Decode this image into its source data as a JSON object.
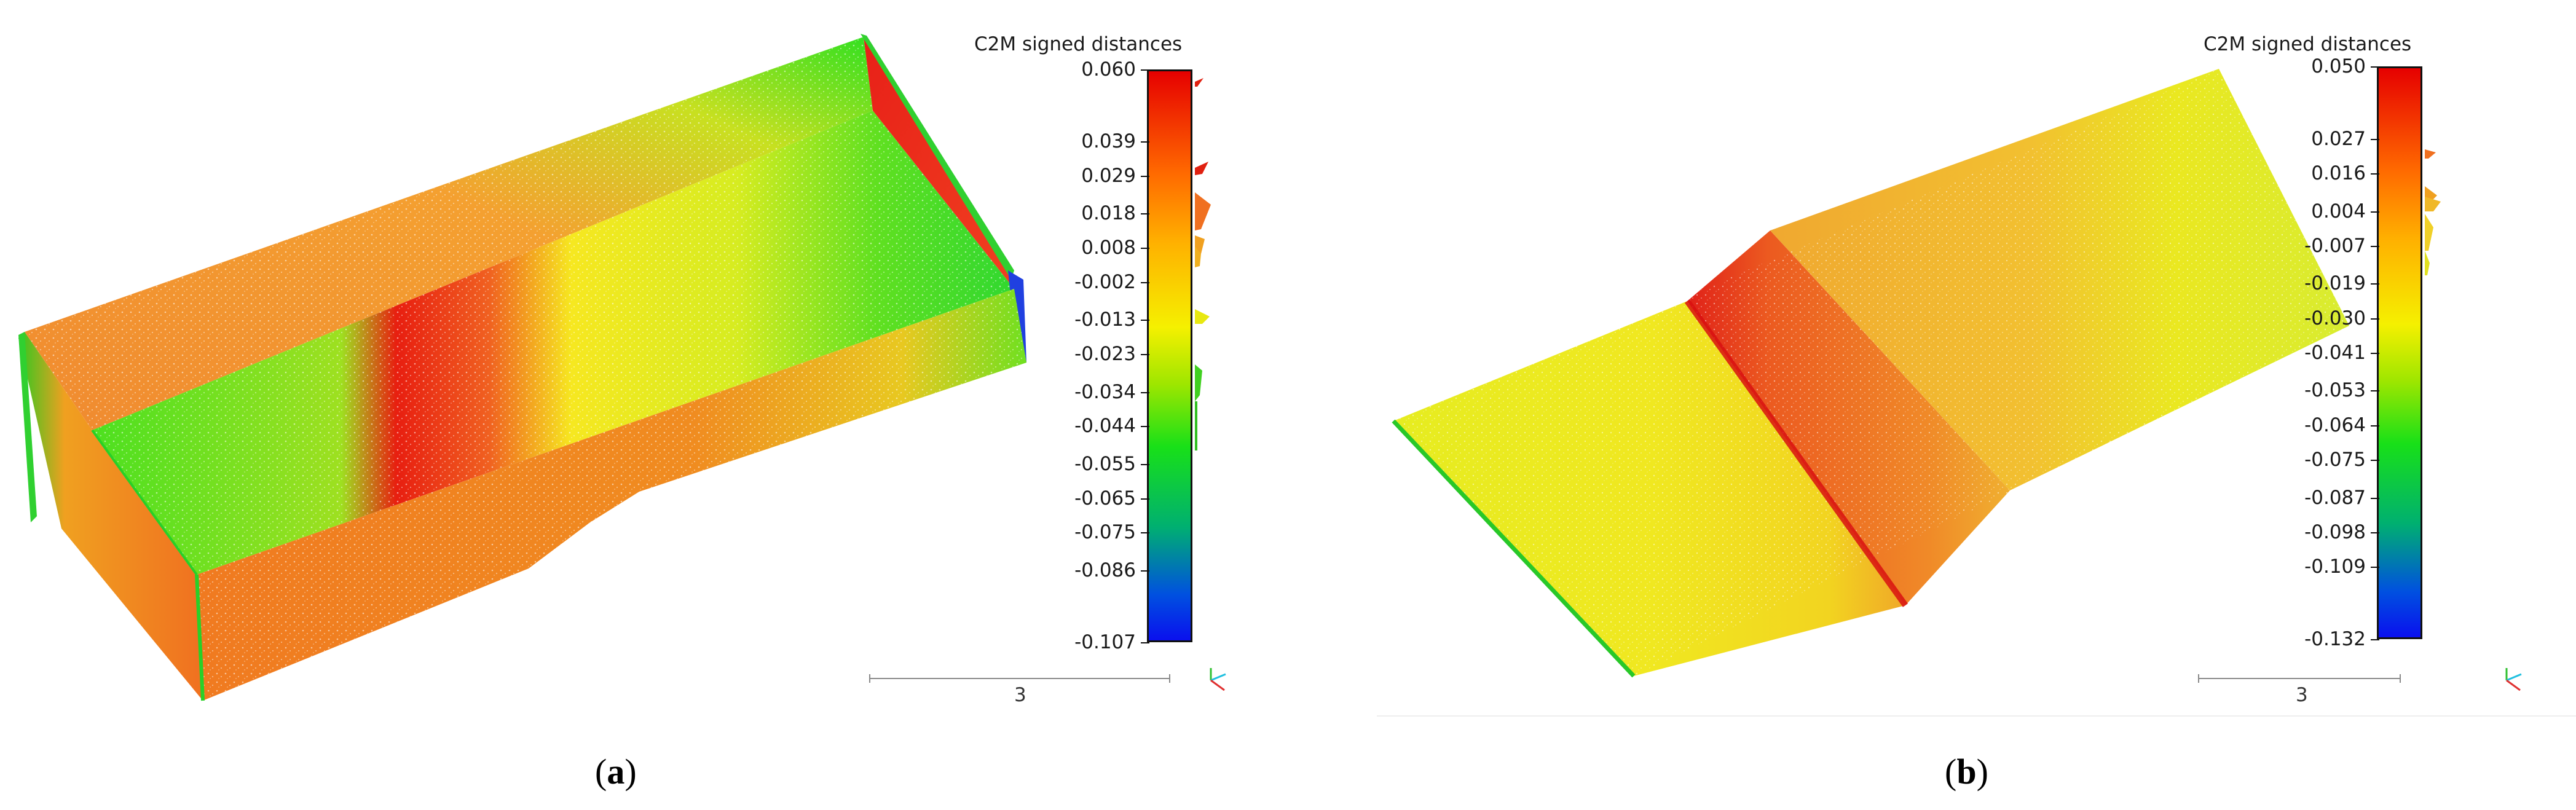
{
  "panels": [
    {
      "id": "a",
      "colorbar": {
        "title": "C2M signed distances",
        "ticks": [
          "0.060",
          "0.039",
          "0.029",
          "0.018",
          "0.008",
          "-0.002",
          "-0.013",
          "-0.023",
          "-0.034",
          "-0.044",
          "-0.055",
          "-0.065",
          "-0.075",
          "-0.086",
          "-0.107"
        ],
        "max": 0.06,
        "min": -0.107
      },
      "scale_label": "3",
      "caption_open": "(",
      "caption_letter": "a",
      "caption_close": ")"
    },
    {
      "id": "b",
      "colorbar": {
        "title": "C2M signed distances",
        "ticks": [
          "0.050",
          "0.027",
          "0.016",
          "0.004",
          "-0.007",
          "-0.019",
          "-0.030",
          "-0.041",
          "-0.053",
          "-0.064",
          "-0.075",
          "-0.087",
          "-0.098",
          "-0.109",
          "-0.132"
        ],
        "max": 0.05,
        "min": -0.132
      },
      "scale_label": "3",
      "caption_open": "(",
      "caption_letter": "b",
      "caption_close": ")"
    }
  ],
  "colors": {
    "red": "#e60000",
    "orange": "#ff7a10",
    "yellow": "#f2ee10",
    "green": "#18e018",
    "blue": "#0a10ee"
  },
  "icons": [
    "axis-triad-icon"
  ]
}
